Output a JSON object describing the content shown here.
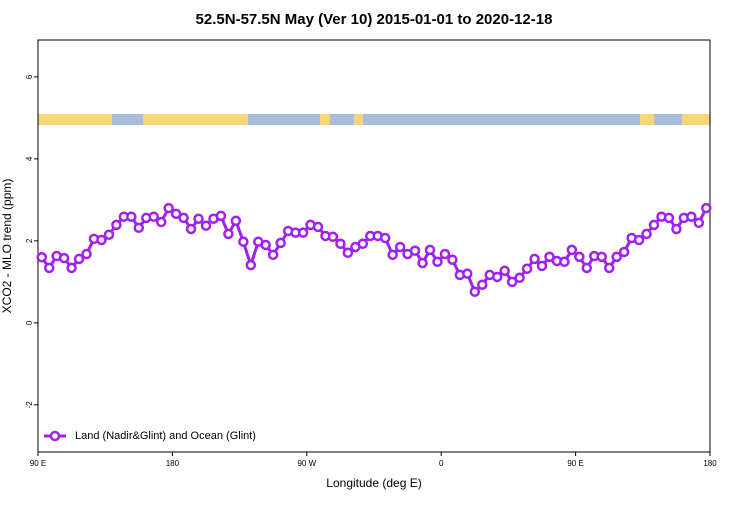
{
  "chart_data": {
    "type": "line",
    "title": "52.5N-57.5N May (Ver 10)   2015-01-01 to 2020-12-18",
    "x_label": "Longitude (deg E)",
    "y_label": "XCO2 - MLO trend (ppm)",
    "xlim": [
      90,
      540
    ],
    "xticks": [
      {
        "value": 90,
        "label": "90 E"
      },
      {
        "value": 180,
        "label": "180"
      },
      {
        "value": 270,
        "label": "90 W"
      },
      {
        "value": 360,
        "label": "0"
      },
      {
        "value": 450,
        "label": "90 E"
      },
      {
        "value": 540,
        "label": "180"
      }
    ],
    "ylim": [
      -3.15,
      6.9
    ],
    "yticks": [
      -2,
      0,
      2,
      4,
      6
    ],
    "legend": "bottom-left",
    "x": [
      92.5,
      97.5,
      102.5,
      107.5,
      112.5,
      117.5,
      122.5,
      127.5,
      132.5,
      137.5,
      142.5,
      147.5,
      152.5,
      157.5,
      162.5,
      167.5,
      172.5,
      177.5,
      182.5,
      187.5,
      192.5,
      197.5,
      202.5,
      207.5,
      212.5,
      217.5,
      222.5,
      227.5,
      232.5,
      237.5,
      242.5,
      247.5,
      252.5,
      257.5,
      262.5,
      267.5,
      272.5,
      277.5,
      282.5,
      287.5,
      292.5,
      297.5,
      302.5,
      307.5,
      312.5,
      317.5,
      322.5,
      327.5,
      332.5,
      337.5,
      342.5,
      347.5,
      352.5,
      357.5,
      362.5,
      367.5,
      372.5,
      377.5,
      382.5,
      387.5,
      392.5,
      397.5,
      402.5,
      407.5,
      412.5,
      417.5,
      422.5,
      427.5,
      432.5,
      437.5,
      442.5,
      447.5,
      452.5,
      457.5,
      462.5,
      467.5,
      472.5,
      477.5,
      482.5,
      487.5,
      492.5,
      497.5,
      502.5,
      507.5,
      512.5,
      517.5,
      522.5,
      527.5,
      532.5,
      537.5
    ],
    "series": [
      {
        "name": "Land (Nadir&Glint) and Ocean (Glint)",
        "color": "#a020f0",
        "values": [
          1.6,
          1.34,
          1.63,
          1.58,
          1.34,
          1.56,
          1.68,
          2.05,
          2.02,
          2.15,
          2.39,
          2.59,
          2.59,
          2.32,
          2.56,
          2.59,
          2.46,
          2.8,
          2.66,
          2.56,
          2.29,
          2.54,
          2.37,
          2.54,
          2.61,
          2.17,
          2.49,
          1.98,
          1.41,
          1.98,
          1.9,
          1.66,
          1.95,
          2.24,
          2.2,
          2.2,
          2.39,
          2.34,
          2.12,
          2.1,
          1.93,
          1.71,
          1.85,
          1.93,
          2.12,
          2.12,
          2.07,
          1.66,
          1.85,
          1.68,
          1.76,
          1.46,
          1.78,
          1.49,
          1.68,
          1.54,
          1.17,
          1.2,
          0.76,
          0.93,
          1.17,
          1.12,
          1.27,
          1.0,
          1.1,
          1.32,
          1.56,
          1.39,
          1.61,
          1.51,
          1.49,
          1.78,
          1.61,
          1.34,
          1.63,
          1.61,
          1.34,
          1.61,
          1.73,
          2.07,
          2.02,
          2.17,
          2.39,
          2.59,
          2.56,
          2.29,
          2.56,
          2.59,
          2.44,
          2.8
        ]
      }
    ]
  }
}
